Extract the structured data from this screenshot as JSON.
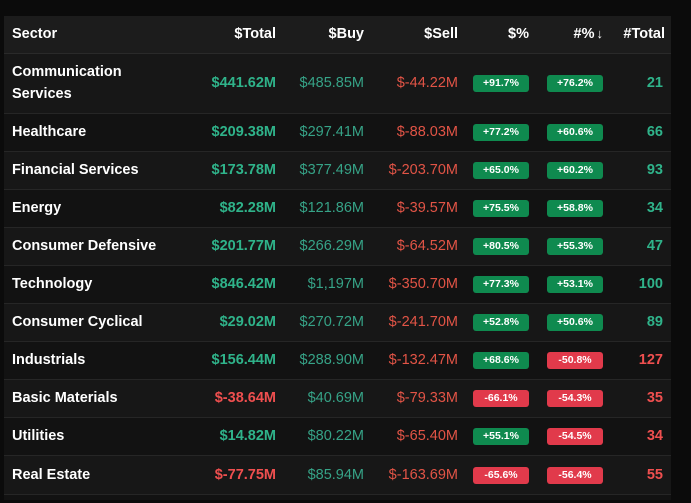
{
  "header": {
    "sector": "Sector",
    "total": "$Total",
    "buy": "$Buy",
    "sell": "$Sell",
    "pct": "$%",
    "count_pct": "#%",
    "sort_arrow": "↓",
    "count_total": "#Total"
  },
  "colors": {
    "positive": "#2fb38a",
    "negative": "#ef4f4f",
    "pill_positive": "#0f8a4f",
    "pill_negative": "#e13a4b"
  },
  "rows": [
    {
      "sector": "Communication Services",
      "total": "$441.62M",
      "buy": "$485.85M",
      "sell": "$-44.22M",
      "pct": "+91.7%",
      "count_pct": "+76.2%",
      "count_total": "21",
      "total_sign": "pos",
      "pct_sign": "up",
      "count_pct_sign": "up",
      "count_sign": "pos"
    },
    {
      "sector": "Healthcare",
      "total": "$209.38M",
      "buy": "$297.41M",
      "sell": "$-88.03M",
      "pct": "+77.2%",
      "count_pct": "+60.6%",
      "count_total": "66",
      "total_sign": "pos",
      "pct_sign": "up",
      "count_pct_sign": "up",
      "count_sign": "pos"
    },
    {
      "sector": "Financial Services",
      "total": "$173.78M",
      "buy": "$377.49M",
      "sell": "$-203.70M",
      "pct": "+65.0%",
      "count_pct": "+60.2%",
      "count_total": "93",
      "total_sign": "pos",
      "pct_sign": "up",
      "count_pct_sign": "up",
      "count_sign": "pos"
    },
    {
      "sector": "Energy",
      "total": "$82.28M",
      "buy": "$121.86M",
      "sell": "$-39.57M",
      "pct": "+75.5%",
      "count_pct": "+58.8%",
      "count_total": "34",
      "total_sign": "pos",
      "pct_sign": "up",
      "count_pct_sign": "up",
      "count_sign": "pos"
    },
    {
      "sector": "Consumer Defensive",
      "total": "$201.77M",
      "buy": "$266.29M",
      "sell": "$-64.52M",
      "pct": "+80.5%",
      "count_pct": "+55.3%",
      "count_total": "47",
      "total_sign": "pos",
      "pct_sign": "up",
      "count_pct_sign": "up",
      "count_sign": "pos"
    },
    {
      "sector": "Technology",
      "total": "$846.42M",
      "buy": "$1,197M",
      "sell": "$-350.70M",
      "pct": "+77.3%",
      "count_pct": "+53.1%",
      "count_total": "100",
      "total_sign": "pos",
      "pct_sign": "up",
      "count_pct_sign": "up",
      "count_sign": "pos"
    },
    {
      "sector": "Consumer Cyclical",
      "total": "$29.02M",
      "buy": "$270.72M",
      "sell": "$-241.70M",
      "pct": "+52.8%",
      "count_pct": "+50.6%",
      "count_total": "89",
      "total_sign": "pos",
      "pct_sign": "up",
      "count_pct_sign": "up",
      "count_sign": "pos"
    },
    {
      "sector": "Industrials",
      "total": "$156.44M",
      "buy": "$288.90M",
      "sell": "$-132.47M",
      "pct": "+68.6%",
      "count_pct": "-50.8%",
      "count_total": "127",
      "total_sign": "pos",
      "pct_sign": "up",
      "count_pct_sign": "down",
      "count_sign": "neg"
    },
    {
      "sector": "Basic Materials",
      "total": "$-38.64M",
      "buy": "$40.69M",
      "sell": "$-79.33M",
      "pct": "-66.1%",
      "count_pct": "-54.3%",
      "count_total": "35",
      "total_sign": "neg",
      "pct_sign": "down",
      "count_pct_sign": "down",
      "count_sign": "neg"
    },
    {
      "sector": "Utilities",
      "total": "$14.82M",
      "buy": "$80.22M",
      "sell": "$-65.40M",
      "pct": "+55.1%",
      "count_pct": "-54.5%",
      "count_total": "34",
      "total_sign": "pos",
      "pct_sign": "up",
      "count_pct_sign": "down",
      "count_sign": "neg"
    },
    {
      "sector": "Real Estate",
      "total": "$-77.75M",
      "buy": "$85.94M",
      "sell": "$-163.69M",
      "pct": "-65.6%",
      "count_pct": "-56.4%",
      "count_total": "55",
      "total_sign": "neg",
      "pct_sign": "down",
      "count_pct_sign": "down",
      "count_sign": "neg"
    }
  ]
}
